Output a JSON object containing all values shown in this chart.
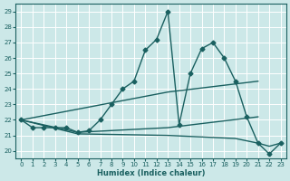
{
  "xlabel": "Humidex (Indice chaleur)",
  "ylabel": "",
  "bg_color": "#cce8e8",
  "grid_color": "#ffffff",
  "line_color": "#1a6060",
  "xlim": [
    -0.5,
    23.5
  ],
  "ylim": [
    19.5,
    29.5
  ],
  "xticks": [
    0,
    1,
    2,
    3,
    4,
    5,
    6,
    7,
    8,
    9,
    10,
    11,
    12,
    13,
    14,
    15,
    16,
    17,
    18,
    19,
    20,
    21,
    22,
    23
  ],
  "yticks": [
    20,
    21,
    22,
    23,
    24,
    25,
    26,
    27,
    28,
    29
  ],
  "lines": [
    {
      "x": [
        0,
        1,
        2,
        3,
        4,
        5,
        6,
        7,
        8,
        9,
        10,
        11,
        12,
        13,
        14,
        15,
        16,
        17,
        18,
        19,
        20,
        21,
        22,
        23
      ],
      "y": [
        22,
        21.5,
        21.5,
        21.5,
        21.5,
        21.2,
        21.3,
        22.0,
        23.0,
        24.0,
        24.5,
        26.5,
        27.2,
        29.0,
        21.7,
        25.0,
        26.6,
        27.0,
        26.0,
        24.5,
        22.2,
        20.5,
        19.8,
        20.5
      ],
      "marker": "D",
      "markersize": 2.5,
      "linewidth": 1.0
    },
    {
      "x": [
        0,
        13,
        21
      ],
      "y": [
        22.0,
        23.8,
        24.5
      ],
      "marker": null,
      "markersize": 0,
      "linewidth": 1.0
    },
    {
      "x": [
        0,
        5,
        13,
        21
      ],
      "y": [
        22.0,
        21.2,
        21.5,
        22.2
      ],
      "marker": null,
      "markersize": 0,
      "linewidth": 1.0
    },
    {
      "x": [
        0,
        5,
        13,
        19,
        21,
        22,
        23
      ],
      "y": [
        22.0,
        21.1,
        21.0,
        20.8,
        20.5,
        20.3,
        20.5
      ],
      "marker": null,
      "markersize": 0,
      "linewidth": 1.0
    }
  ]
}
